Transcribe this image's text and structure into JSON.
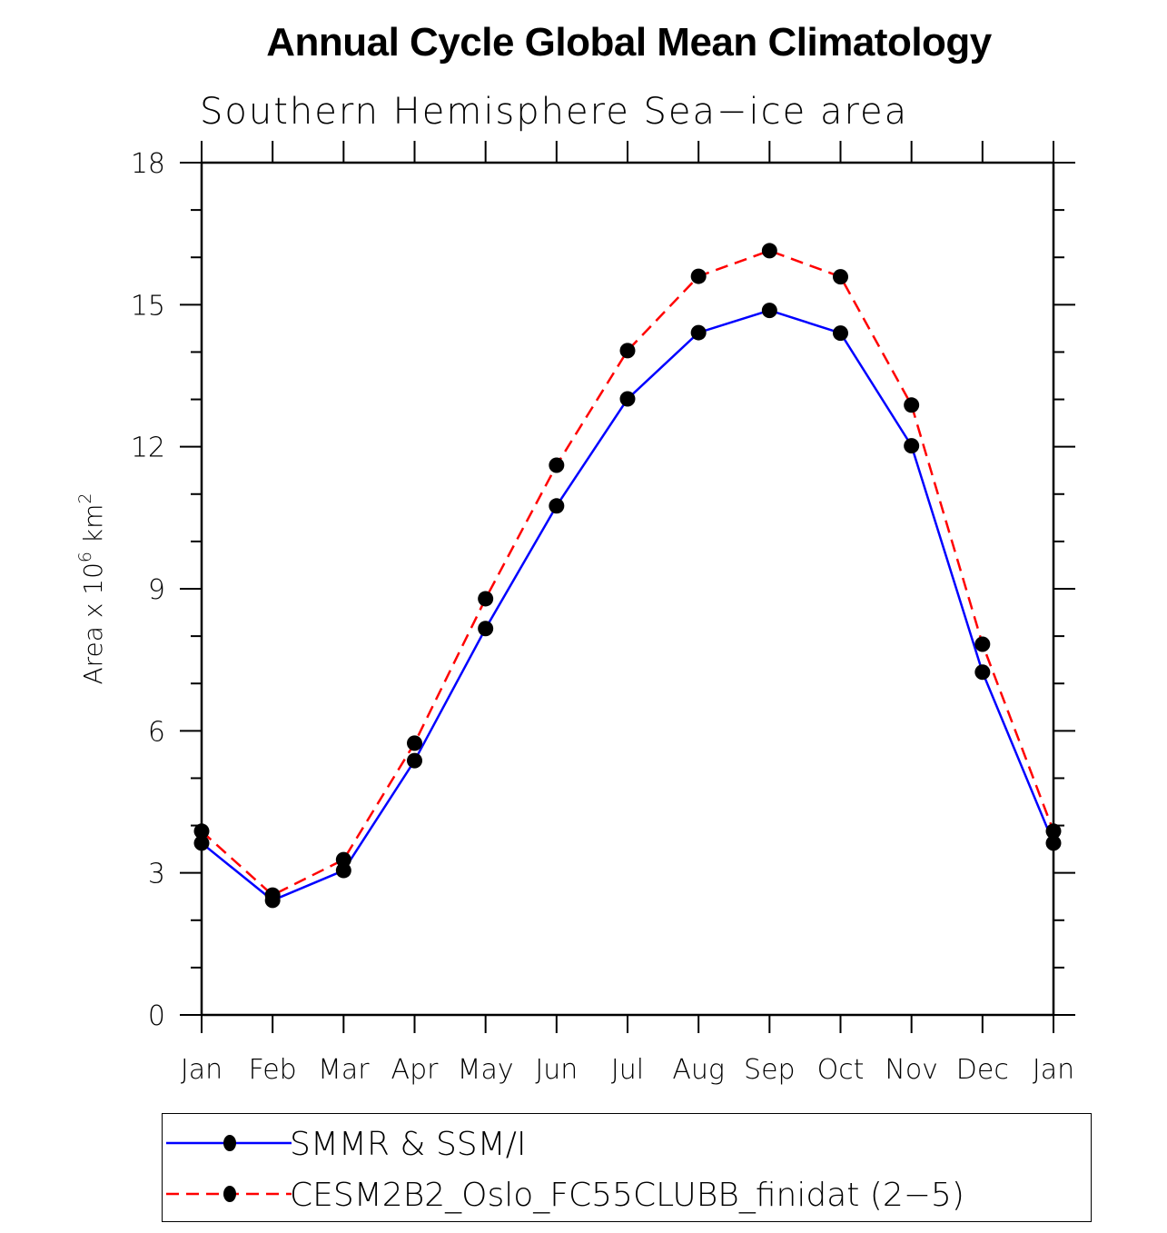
{
  "chart_data": {
    "type": "line",
    "title": "Annual Cycle Global Mean Climatology",
    "subtitle": "Southern Hemisphere Sea−ice area",
    "xlabel": "",
    "ylabel": "Area x 10^6 km^2",
    "ylabel_parts": {
      "base": "Area x 10",
      "exp1": "6",
      "unit": " km",
      "exp2": "2"
    },
    "categories": [
      "Jan",
      "Feb",
      "Mar",
      "Apr",
      "May",
      "Jun",
      "Jul",
      "Aug",
      "Sep",
      "Oct",
      "Nov",
      "Dec",
      "Jan"
    ],
    "ylim": [
      0,
      18
    ],
    "yticks": [
      0,
      3,
      6,
      9,
      12,
      15,
      18
    ],
    "yminor_step": 1,
    "grid": false,
    "legend_position": "bottom",
    "series": [
      {
        "name": "SMMR & SSM/I",
        "color": "#0000ff",
        "dash": "solid",
        "marker": "filled-circle",
        "values": [
          3.63,
          2.42,
          3.05,
          5.37,
          8.16,
          10.75,
          13.01,
          14.41,
          14.88,
          14.4,
          12.02,
          7.24,
          3.63
        ]
      },
      {
        "name": "CESM2B2_Oslo_FC55CLUBB_finidat (2−5)",
        "color": "#ff0000",
        "dash": "dashed",
        "marker": "filled-circle",
        "values": [
          3.88,
          2.53,
          3.28,
          5.74,
          8.79,
          11.61,
          14.03,
          15.6,
          16.14,
          15.59,
          12.88,
          7.83,
          3.88
        ]
      }
    ]
  }
}
